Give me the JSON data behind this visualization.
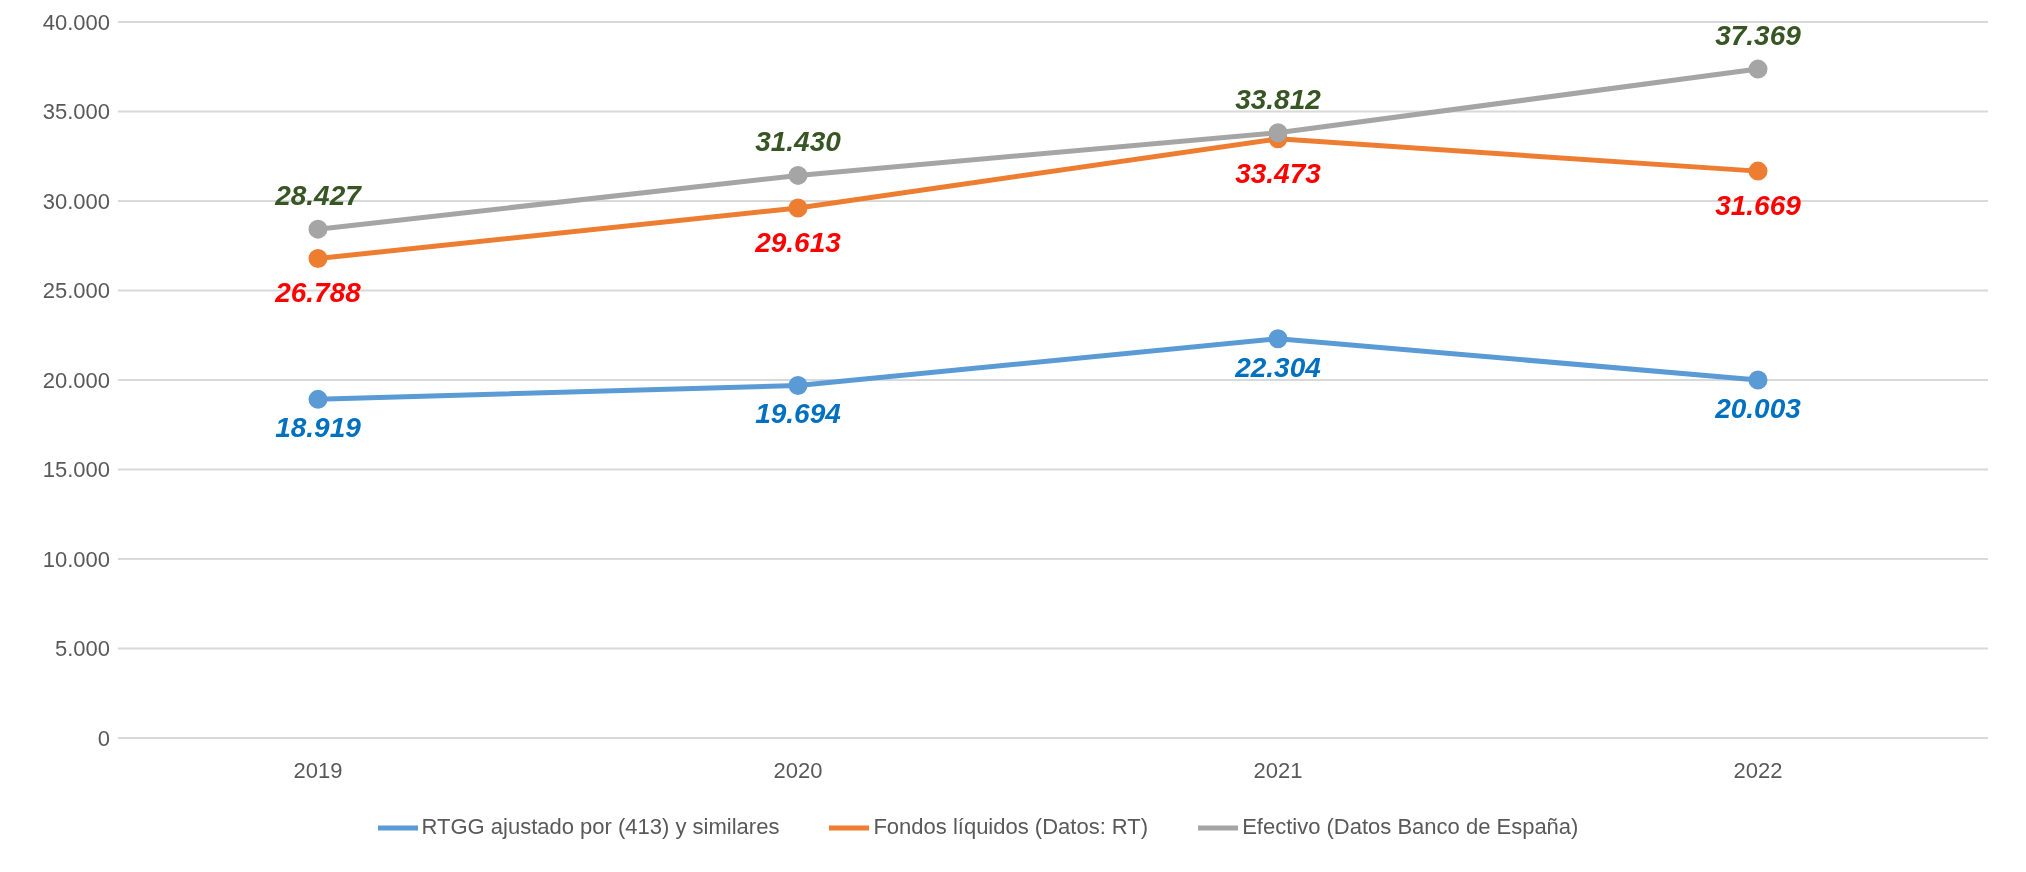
{
  "chart_data": {
    "type": "line",
    "categories": [
      "2019",
      "2020",
      "2021",
      "2022"
    ],
    "series": [
      {
        "name": "RTGG ajustado por (413) y similares",
        "color": "#5b9bd5",
        "values": [
          18919,
          19694,
          22304,
          20003
        ],
        "value_labels": [
          "18.919",
          "19.694",
          "22.304",
          "20.003"
        ]
      },
      {
        "name": "Fondos líquidos (Datos: RT)",
        "color": "#ed7d31",
        "values": [
          26788,
          29613,
          33473,
          31669
        ],
        "value_labels": [
          "26.788",
          "29.613",
          "33.473",
          "31.669"
        ]
      },
      {
        "name": "Efectivo (Datos Banco de España)",
        "color": "#a5a5a5",
        "values": [
          28427,
          31430,
          33812,
          37369
        ],
        "value_labels": [
          "28.427",
          "31.430",
          "33.812",
          "37.369"
        ]
      }
    ],
    "ylim": [
      0,
      40000
    ],
    "yticks": [
      0,
      {
        "value": 5000,
        "label": "5.000"
      },
      {
        "value": 10000,
        "label": "10.000"
      },
      {
        "value": 15000,
        "label": "15.000"
      },
      {
        "value": 20000,
        "label": "20.000"
      },
      {
        "value": 25000,
        "label": "25.000"
      },
      {
        "value": 30000,
        "label": "30.000"
      },
      {
        "value": 35000,
        "label": "35.000"
      },
      {
        "value": 40000,
        "label": "40.000"
      }
    ],
    "grid": "y",
    "legend": "bottom",
    "marker": "circle",
    "line_style": "solid"
  }
}
